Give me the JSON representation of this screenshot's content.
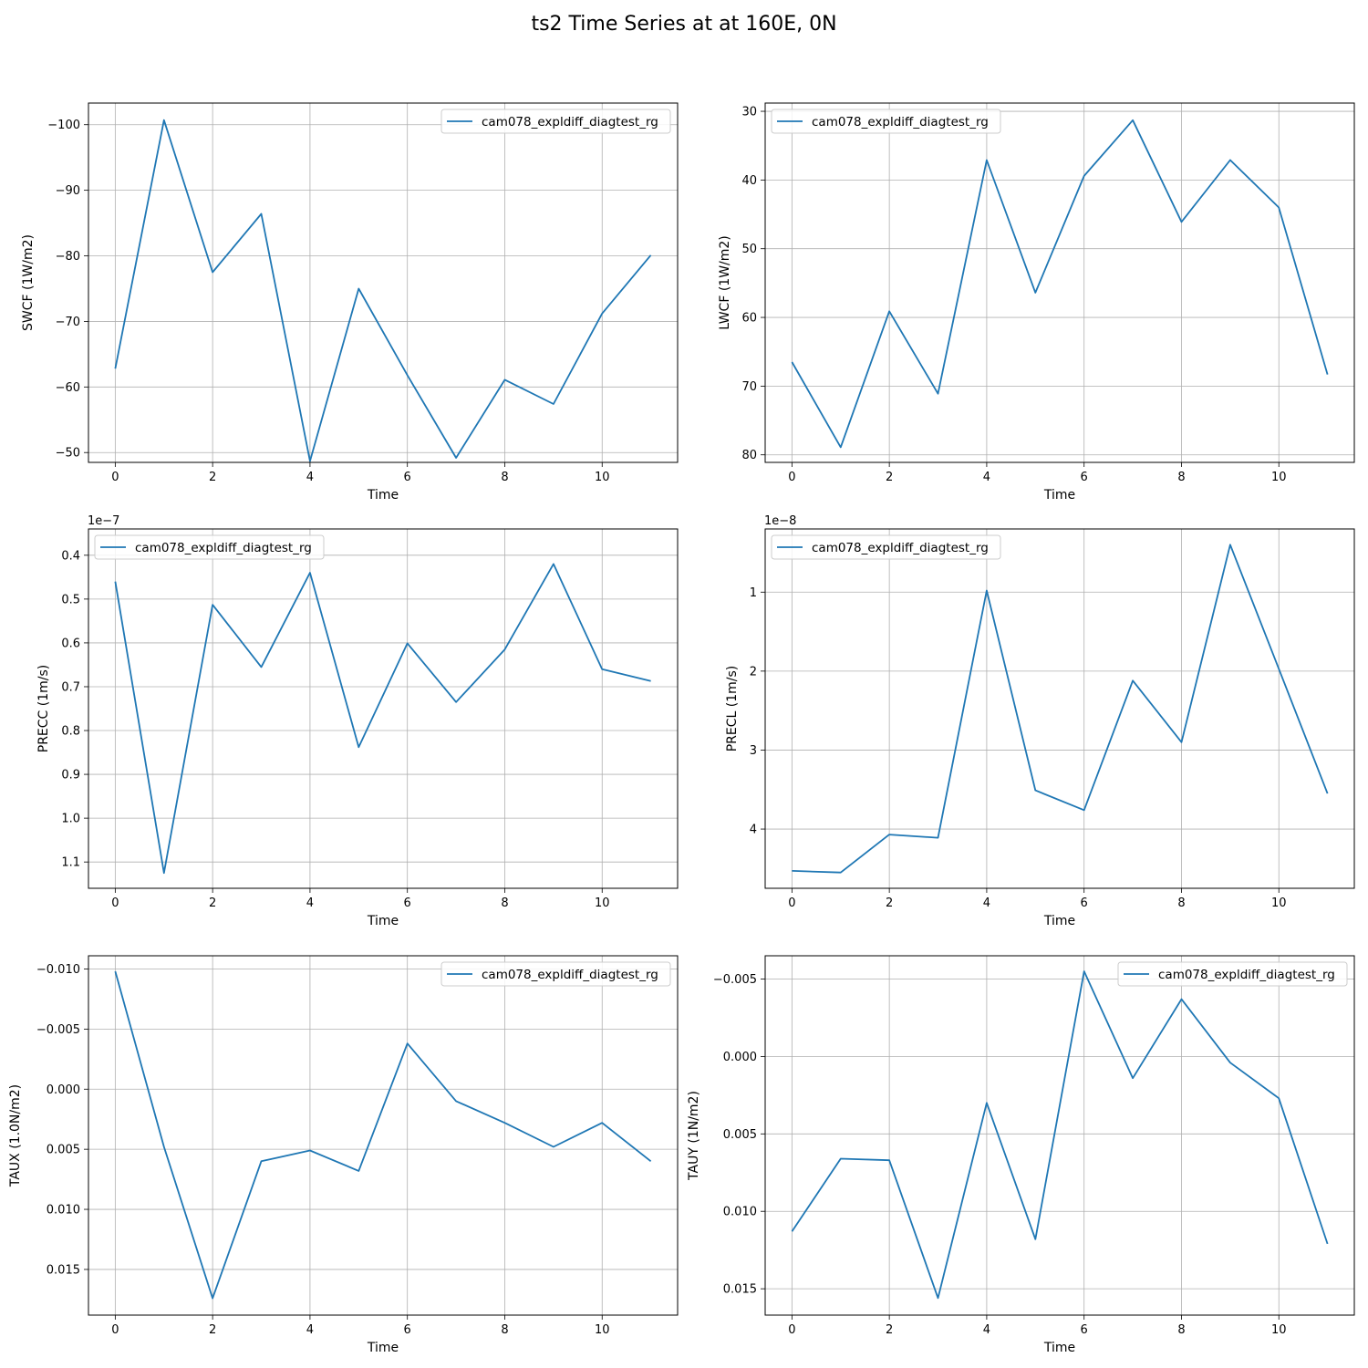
{
  "figure": {
    "title": "ts2 Time Series at at 160E, 0N"
  },
  "chart_data": [
    {
      "type": "line",
      "xlabel": "Time",
      "ylabel": "SWCF (1W/m2)",
      "x": [
        0,
        1,
        2,
        3,
        4,
        5,
        6,
        7,
        8,
        9,
        10,
        11
      ],
      "xlim": [
        -0.55,
        11.55
      ],
      "xticks": [
        0,
        2,
        4,
        6,
        8,
        10
      ],
      "ylim": [
        -48.5,
        -103.3
      ],
      "yticks": [
        -100,
        -90,
        -80,
        -70,
        -60,
        -50
      ],
      "ytick_labels": [
        "−100",
        "−90",
        "−80",
        "−70",
        "−60",
        "−50"
      ],
      "offset_label": "",
      "legend": "upper right",
      "grid": true,
      "series": [
        {
          "name": "cam078_expldiff_diagtest_rg",
          "color": "#1f77b4",
          "values": [
            -62.8,
            -100.7,
            -77.5,
            -86.4,
            -48.7,
            -75.0,
            -61.8,
            -49.2,
            -61.1,
            -57.4,
            -71.2,
            -80.1
          ]
        }
      ]
    },
    {
      "type": "line",
      "xlabel": "Time",
      "ylabel": "LWCF (1W/m2)",
      "x": [
        0,
        1,
        2,
        3,
        4,
        5,
        6,
        7,
        8,
        9,
        10,
        11
      ],
      "xlim": [
        -0.55,
        11.55
      ],
      "xticks": [
        0,
        2,
        4,
        6,
        8,
        10
      ],
      "ylim": [
        81.1,
        28.8
      ],
      "yticks": [
        30,
        40,
        50,
        60,
        70,
        80
      ],
      "ytick_labels": [
        "30",
        "40",
        "50",
        "60",
        "70",
        "80"
      ],
      "offset_label": "",
      "legend": "upper left",
      "grid": true,
      "series": [
        {
          "name": "cam078_expldiff_diagtest_rg",
          "color": "#1f77b4",
          "values": [
            66.5,
            78.9,
            59.1,
            71.1,
            37.1,
            56.4,
            39.4,
            31.3,
            46.1,
            37.1,
            44.0,
            68.3
          ]
        }
      ]
    },
    {
      "type": "line",
      "xlabel": "Time",
      "ylabel": "PRECC (1m/s)",
      "x": [
        0,
        1,
        2,
        3,
        4,
        5,
        6,
        7,
        8,
        9,
        10,
        11
      ],
      "xlim": [
        -0.55,
        11.55
      ],
      "xticks": [
        0,
        2,
        4,
        6,
        8,
        10
      ],
      "ylim": [
        1.16,
        0.34
      ],
      "yticks": [
        0.4,
        0.5,
        0.6,
        0.7,
        0.8,
        0.9,
        1.0,
        1.1
      ],
      "ytick_labels": [
        "0.4",
        "0.5",
        "0.6",
        "0.7",
        "0.8",
        "0.9",
        "1.0",
        "1.1"
      ],
      "offset_label": "1e−7",
      "legend": "upper left",
      "grid": true,
      "series": [
        {
          "name": "cam078_expldiff_diagtest_rg",
          "color": "#1f77b4",
          "values": [
            0.46,
            1.125,
            0.513,
            0.655,
            0.44,
            0.838,
            0.601,
            0.735,
            0.615,
            0.42,
            0.66,
            0.687
          ]
        }
      ]
    },
    {
      "type": "line",
      "xlabel": "Time",
      "ylabel": "PRECL (1m/s)",
      "x": [
        0,
        1,
        2,
        3,
        4,
        5,
        6,
        7,
        8,
        9,
        10,
        11
      ],
      "xlim": [
        -0.55,
        11.55
      ],
      "xticks": [
        0,
        2,
        4,
        6,
        8,
        10
      ],
      "ylim": [
        4.75,
        0.2
      ],
      "yticks": [
        1,
        2,
        3,
        4
      ],
      "ytick_labels": [
        "1",
        "2",
        "3",
        "4"
      ],
      "offset_label": "1e−8",
      "legend": "upper left",
      "grid": true,
      "series": [
        {
          "name": "cam078_expldiff_diagtest_rg",
          "color": "#1f77b4",
          "values": [
            4.53,
            4.55,
            4.07,
            4.11,
            0.98,
            3.51,
            3.76,
            2.12,
            2.9,
            0.4,
            1.97,
            3.55
          ]
        }
      ]
    },
    {
      "type": "line",
      "xlabel": "Time",
      "ylabel": "TAUX (1.0N/m2)",
      "x": [
        0,
        1,
        2,
        3,
        4,
        5,
        6,
        7,
        8,
        9,
        10,
        11
      ],
      "xlim": [
        -0.55,
        11.55
      ],
      "xticks": [
        0,
        2,
        4,
        6,
        8,
        10
      ],
      "ylim": [
        0.0188,
        -0.0111
      ],
      "yticks": [
        -0.01,
        -0.005,
        0.0,
        0.005,
        0.01,
        0.015
      ],
      "ytick_labels": [
        "−0.010",
        "−0.005",
        "0.000",
        "0.005",
        "0.010",
        "0.015"
      ],
      "offset_label": "",
      "legend": "upper right",
      "grid": true,
      "series": [
        {
          "name": "cam078_expldiff_diagtest_rg",
          "color": "#1f77b4",
          "values": [
            -0.0098,
            0.0048,
            0.0174,
            0.006,
            0.0051,
            0.0068,
            -0.0038,
            0.001,
            0.0028,
            0.0048,
            0.0028,
            0.006
          ]
        }
      ]
    },
    {
      "type": "line",
      "xlabel": "Time",
      "ylabel": "TAUY (1N/m2)",
      "x": [
        0,
        1,
        2,
        3,
        4,
        5,
        6,
        7,
        8,
        9,
        10,
        11
      ],
      "xlim": [
        -0.55,
        11.55
      ],
      "xticks": [
        0,
        2,
        4,
        6,
        8,
        10
      ],
      "ylim": [
        0.0167,
        -0.0065
      ],
      "yticks": [
        -0.005,
        0.0,
        0.005,
        0.01,
        0.015
      ],
      "ytick_labels": [
        "−0.005",
        "0.000",
        "0.005",
        "0.010",
        "0.015"
      ],
      "offset_label": "",
      "legend": "upper right",
      "grid": true,
      "series": [
        {
          "name": "cam078_expldiff_diagtest_rg",
          "color": "#1f77b4",
          "values": [
            0.0113,
            0.0066,
            0.0067,
            0.0156,
            0.003,
            0.0118,
            -0.0055,
            0.0014,
            -0.0037,
            0.0004,
            0.0027,
            0.0121
          ]
        }
      ]
    }
  ]
}
